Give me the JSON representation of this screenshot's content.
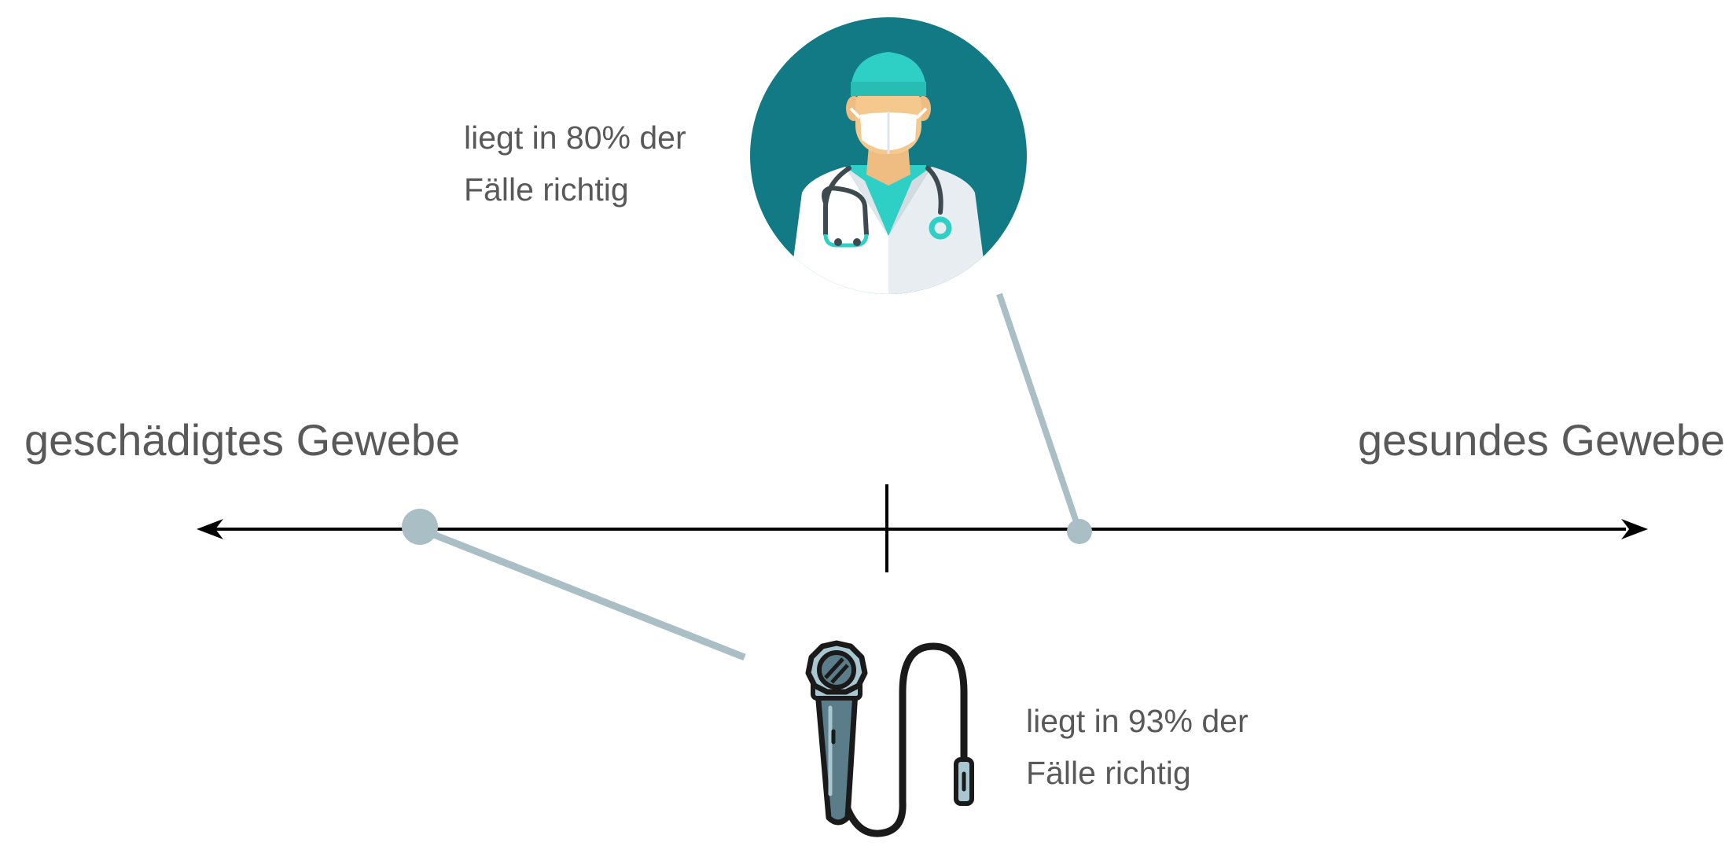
{
  "axis": {
    "left_label": "geschädigtes Gewebe",
    "right_label": "gesundes Gewebe"
  },
  "doctor": {
    "icon": "doctor-icon",
    "note_line1": "liegt in 80% der",
    "note_line2": "Fälle richtig"
  },
  "endoscope": {
    "icon": "endoscope-icon",
    "note_line1": "liegt in 93% der",
    "note_line2": "Fälle richtig"
  },
  "colors": {
    "axis": "#000000",
    "connector": "#a9bec5",
    "text": "#595959",
    "doctor_circle": "#127a85",
    "cap_and_scrubs": "#2ecfc4",
    "skin": "#f5c98e",
    "coat": "#f0f3f6",
    "endoscope_head": "#a9c7d0",
    "endoscope_body": "#5b7d8a"
  }
}
